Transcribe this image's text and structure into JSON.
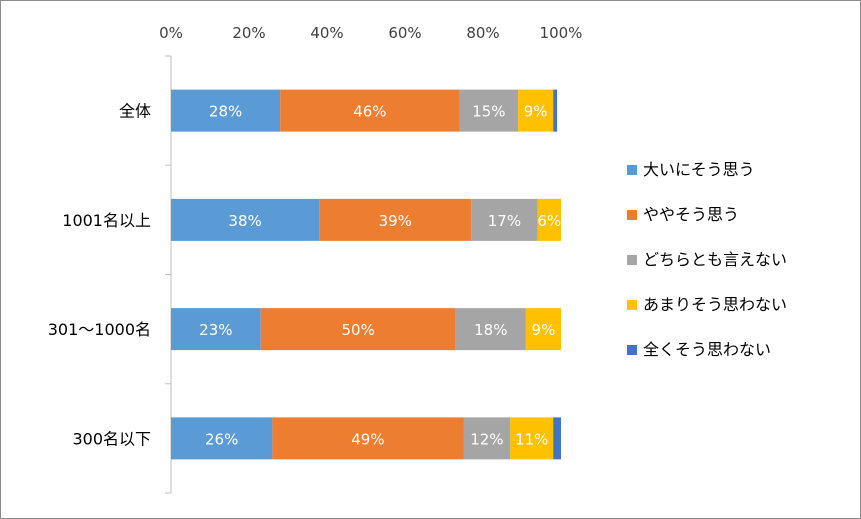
{
  "chart_data": {
    "type": "bar",
    "orientation": "horizontal",
    "stacked": true,
    "percent_stacked": true,
    "categories": [
      "全体",
      "1001名以上",
      "301～1000名",
      "300名以下"
    ],
    "x_ticks": [
      "0%",
      "20%",
      "40%",
      "60%",
      "80%",
      "100%"
    ],
    "xlim": [
      0,
      100
    ],
    "grid": false,
    "legend_position": "right",
    "series": [
      {
        "name": "大いにそう思う",
        "color": "#5B9BD5",
        "values": [
          28,
          38,
          23,
          26
        ],
        "labels": [
          "28%",
          "38%",
          "23%",
          "26%"
        ]
      },
      {
        "name": "ややそう思う",
        "color": "#ED7D31",
        "values": [
          46,
          39,
          50,
          49
        ],
        "labels": [
          "46%",
          "39%",
          "50%",
          "49%"
        ]
      },
      {
        "name": "どちらとも言えない",
        "color": "#A5A5A5",
        "values": [
          15,
          17,
          18,
          12
        ],
        "labels": [
          "15%",
          "17%",
          "18%",
          "12%"
        ]
      },
      {
        "name": "あまりそう思わない",
        "color": "#FFC000",
        "values": [
          9,
          6,
          9,
          11
        ],
        "labels": [
          "9%",
          "6%",
          "9%",
          "11%"
        ]
      },
      {
        "name": "全くそう思わない",
        "color": "#4472C4",
        "values": [
          1,
          0,
          0,
          2
        ],
        "labels": [
          "",
          "",
          "",
          ""
        ]
      }
    ]
  }
}
